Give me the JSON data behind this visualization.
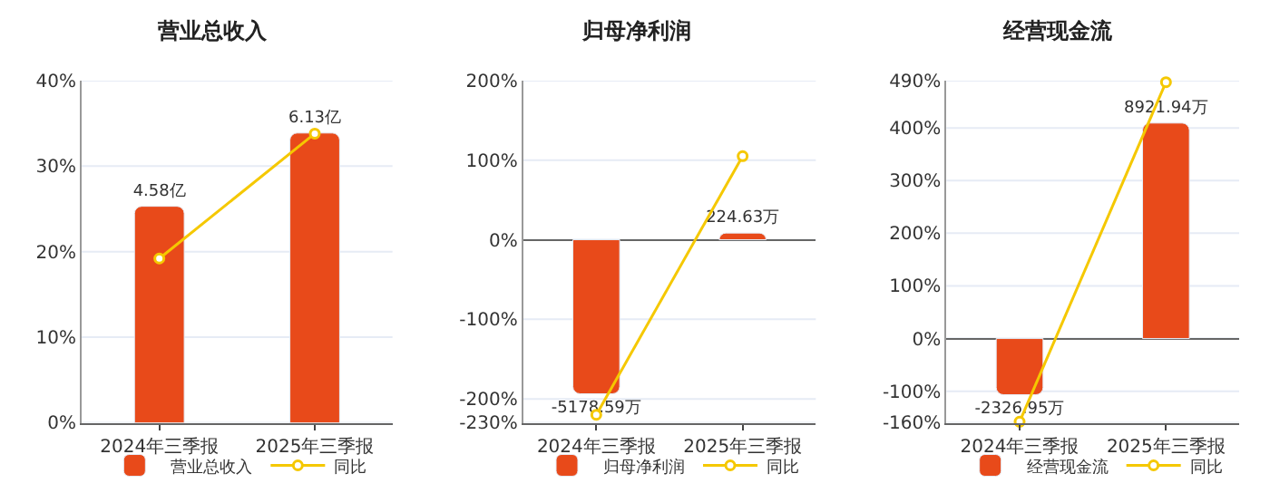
{
  "chart_data": [
    {
      "type": "bar",
      "title": "营业总收入",
      "categories": [
        "2024年三季报",
        "2025年三季报"
      ],
      "series": [
        {
          "name": "营业总收入",
          "color": "#e84a1a",
          "axis": "y2",
          "values": [
            4.58,
            6.13
          ],
          "value_labels": [
            "4.58亿",
            "6.13亿"
          ]
        },
        {
          "name": "同比",
          "type": "line",
          "color": "#f5c800",
          "values": [
            19.2,
            33.8
          ],
          "marker": "circle"
        }
      ],
      "ylim": [
        0,
        40
      ],
      "yticks": [
        {
          "value": 0,
          "label": "0%"
        },
        {
          "value": 10,
          "label": "10%"
        },
        {
          "value": 20,
          "label": "20%"
        },
        {
          "value": 30,
          "label": "30%"
        },
        {
          "value": 40,
          "label": "40%"
        }
      ],
      "y2lim": [
        0,
        7.24
      ],
      "grid": "y",
      "legend": "bottom"
    },
    {
      "type": "bar",
      "title": "归母净利润",
      "categories": [
        "2024年三季报",
        "2025年三季报"
      ],
      "series": [
        {
          "name": "归母净利润",
          "color": "#e84a1a",
          "axis": "y2",
          "values": [
            -5178.59,
            224.63
          ],
          "value_labels": [
            "-5178.59万",
            "224.63万"
          ]
        },
        {
          "name": "同比",
          "type": "line",
          "color": "#f5c800",
          "values": [
            -220,
            105
          ],
          "marker": "circle"
        }
      ],
      "ylim": [
        -230,
        200
      ],
      "yticks": [
        {
          "value": -230,
          "label": "-230%"
        },
        {
          "value": -200,
          "label": "-200%"
        },
        {
          "value": -100,
          "label": "-100%"
        },
        {
          "value": 0,
          "label": "0%"
        },
        {
          "value": 100,
          "label": "100%"
        },
        {
          "value": 200,
          "label": "200%"
        }
      ],
      "y2lim": [
        -6153,
        5350
      ],
      "grid": "y",
      "legend": "bottom"
    },
    {
      "type": "bar",
      "title": "经营现金流",
      "categories": [
        "2024年三季报",
        "2025年三季报"
      ],
      "series": [
        {
          "name": "经营现金流",
          "color": "#e84a1a",
          "axis": "y2",
          "values": [
            -2326.95,
            8921.94
          ],
          "value_labels": [
            "-2326.95万",
            "8921.94万"
          ]
        },
        {
          "name": "同比",
          "type": "line",
          "color": "#f5c800",
          "values": [
            -158,
            487
          ],
          "marker": "circle"
        }
      ],
      "ylim": [
        -160,
        490
      ],
      "yticks": [
        {
          "value": -160,
          "label": "-160%"
        },
        {
          "value": -100,
          "label": "-100%"
        },
        {
          "value": 0,
          "label": "0%"
        },
        {
          "value": 100,
          "label": "100%"
        },
        {
          "value": 200,
          "label": "200%"
        },
        {
          "value": 300,
          "label": "300%"
        },
        {
          "value": 400,
          "label": "400%"
        },
        {
          "value": 490,
          "label": "490%"
        }
      ],
      "y2lim": [
        -3488,
        10682
      ],
      "grid": "y",
      "legend": "bottom"
    }
  ]
}
